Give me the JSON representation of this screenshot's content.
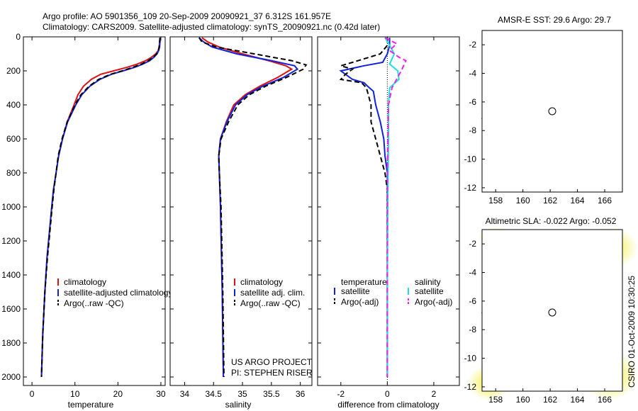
{
  "title_lines": [
    "Argo profile: AO 5901356_109 20-Sep-2009 20090921_37 6.312S 161.957E",
    "Climatology: CARS2009. Satellite-adjusted climatology: synTS_20090921.nc (0.42d later)"
  ],
  "side_label": "CSIRO 01-Oct-2009 10:30:25",
  "credit_lines": [
    "US ARGO PROJECT",
    "PI: STEPHEN RISER"
  ],
  "colors": {
    "clim": "#dd1111",
    "sat": "#1122dd",
    "argo": "#000000",
    "sal_sat": "#22dddd",
    "sal_argo": "#ee22ee"
  },
  "chart_data": [
    {
      "type": "line",
      "panel": "temperature",
      "xlabel": "temperature",
      "ylabel": "",
      "xlim": [
        -2,
        31
      ],
      "ylim": [
        2050,
        0
      ],
      "y_reversed": true,
      "xticks": [
        0,
        10,
        20,
        30
      ],
      "yticks": [
        0,
        200,
        400,
        600,
        800,
        1000,
        1200,
        1400,
        1600,
        1800,
        2000
      ],
      "legend_position": "lower-right",
      "series": [
        {
          "name": "climatology",
          "style": "solid",
          "color": "#dd1111",
          "x": [
            29.8,
            29.7,
            29.6,
            29.4,
            28.8,
            27.8,
            26.5,
            24.5,
            22.0,
            19.0,
            16.0,
            13.8,
            12.0,
            10.7,
            9.8,
            8.2,
            7.1,
            6.2,
            5.6,
            5.0,
            4.6,
            3.5,
            3.0,
            2.5,
            2.2
          ],
          "y": [
            5,
            30,
            60,
            80,
            100,
            120,
            140,
            160,
            180,
            200,
            220,
            250,
            290,
            340,
            400,
            500,
            600,
            700,
            800,
            900,
            1000,
            1300,
            1500,
            1750,
            2000
          ]
        },
        {
          "name": "satellite-adjusted climatology",
          "style": "solid",
          "color": "#1122dd",
          "x": [
            29.9,
            29.8,
            29.7,
            29.5,
            29.1,
            28.4,
            27.4,
            25.8,
            23.8,
            21.2,
            18.5,
            15.8,
            13.5,
            11.6,
            10.2,
            8.3,
            7.1,
            6.2,
            5.6,
            5.0,
            4.6,
            3.5,
            3.0,
            2.5,
            2.2
          ],
          "y": [
            5,
            30,
            60,
            80,
            100,
            120,
            140,
            160,
            180,
            200,
            220,
            250,
            290,
            340,
            400,
            500,
            600,
            700,
            800,
            900,
            1000,
            1300,
            1500,
            1750,
            2000
          ]
        },
        {
          "name": "Argo(..raw -QC)",
          "style": "dashed",
          "color": "#000000",
          "x": [
            29.8,
            29.7,
            29.6,
            29.4,
            29.0,
            28.2,
            27.1,
            25.5,
            23.4,
            21.0,
            18.3,
            15.5,
            13.3,
            11.4,
            10.0,
            8.2,
            7.0,
            6.1,
            5.6,
            5.1,
            4.7,
            3.6,
            3.0,
            2.5,
            2.2
          ],
          "y": [
            5,
            30,
            60,
            80,
            100,
            120,
            140,
            160,
            180,
            200,
            220,
            250,
            290,
            340,
            400,
            500,
            600,
            700,
            800,
            900,
            1000,
            1300,
            1500,
            1750,
            2000
          ]
        }
      ]
    },
    {
      "type": "line",
      "panel": "salinity",
      "xlabel": "salinity",
      "ylabel": "",
      "xlim": [
        33.75,
        36.2
      ],
      "ylim": [
        2050,
        0
      ],
      "y_reversed": true,
      "xticks": [
        34,
        34.5,
        35,
        35.5,
        36
      ],
      "legend_position": "lower-right",
      "series": [
        {
          "name": "climatology",
          "style": "solid",
          "color": "#dd1111",
          "x": [
            34.3,
            34.4,
            34.6,
            35.0,
            35.45,
            35.75,
            35.85,
            35.6,
            35.3,
            35.05,
            34.85,
            34.72,
            34.62,
            34.59,
            34.6,
            34.62,
            34.65,
            34.67
          ],
          "y": [
            5,
            30,
            60,
            100,
            140,
            170,
            190,
            240,
            290,
            340,
            400,
            500,
            600,
            700,
            800,
            1000,
            1500,
            2000
          ]
        },
        {
          "name": "satellite adj. clim.",
          "style": "solid",
          "color": "#1122dd",
          "x": [
            34.25,
            34.33,
            34.48,
            34.9,
            35.5,
            35.9,
            35.95,
            35.7,
            35.35,
            35.08,
            34.88,
            34.73,
            34.62,
            34.59,
            34.6,
            34.62,
            34.65,
            34.67
          ],
          "y": [
            5,
            30,
            60,
            100,
            140,
            170,
            190,
            240,
            290,
            340,
            400,
            500,
            600,
            700,
            800,
            1000,
            1500,
            2000
          ]
        },
        {
          "name": "Argo(..raw -QC)",
          "style": "dashed",
          "color": "#000000",
          "x": [
            34.25,
            34.3,
            34.55,
            35.2,
            35.85,
            36.1,
            36.05,
            35.75,
            35.4,
            35.12,
            34.92,
            34.76,
            34.63,
            34.59,
            34.6,
            34.63,
            34.66,
            34.68
          ],
          "y": [
            5,
            30,
            60,
            100,
            140,
            165,
            190,
            240,
            290,
            340,
            400,
            500,
            600,
            700,
            800,
            1000,
            1500,
            2000
          ]
        }
      ]
    },
    {
      "type": "line",
      "panel": "difference",
      "xlabel": "difference from climatology",
      "ylabel": "",
      "xlim": [
        -3,
        3.1
      ],
      "ylim": [
        2050,
        0
      ],
      "y_reversed": true,
      "xticks": [
        -2,
        0,
        2
      ],
      "legend_position": "lower-center",
      "legend_headers": [
        "temperature",
        "salinity"
      ],
      "series": [
        {
          "name": "satellite",
          "group": "temperature",
          "style": "solid",
          "color": "#1122dd",
          "x": [
            0.1,
            0.1,
            0.0,
            -0.2,
            -1.0,
            -2.0,
            -1.8,
            -1.5,
            -1.0,
            -0.85,
            -0.6,
            -0.5,
            -0.3,
            -0.15,
            -0.1,
            0.0,
            0.0,
            0.0
          ],
          "y": [
            5,
            50,
            100,
            150,
            170,
            200,
            220,
            250,
            270,
            290,
            320,
            400,
            500,
            600,
            700,
            800,
            1200,
            2000
          ]
        },
        {
          "name": "Argo(-adj)",
          "group": "temperature",
          "style": "dashed",
          "color": "#000000",
          "x": [
            0.0,
            0.0,
            -0.3,
            -1.5,
            -2.0,
            -1.5,
            -1.8,
            -2.0,
            -1.1,
            -0.9,
            -0.7,
            -0.7,
            -0.5,
            -0.3,
            -0.1,
            0.0,
            0.0,
            0.0
          ],
          "y": [
            5,
            50,
            100,
            150,
            170,
            190,
            220,
            250,
            270,
            300,
            400,
            500,
            600,
            700,
            800,
            900,
            1200,
            2000
          ]
        },
        {
          "name": "satellite",
          "group": "salinity",
          "style": "solid",
          "color": "#22dddd",
          "x": [
            -0.1,
            0.1,
            0.3,
            0.2,
            0.1,
            0.45,
            0.5,
            0.1,
            0.05,
            0.05,
            0.02,
            0.0,
            0.0
          ],
          "y": [
            5,
            50,
            100,
            130,
            160,
            200,
            250,
            300,
            400,
            600,
            1000,
            1500,
            2000
          ]
        },
        {
          "name": "Argo(-adj)",
          "group": "salinity",
          "style": "dashed",
          "color": "#ee22ee",
          "x": [
            -0.1,
            0.4,
            0.1,
            0.5,
            0.8,
            0.6,
            0.4,
            0.2,
            0.05,
            0.0,
            0.0
          ],
          "y": [
            5,
            40,
            80,
            120,
            140,
            200,
            250,
            300,
            400,
            800,
            2000
          ]
        }
      ]
    }
  ],
  "maps": [
    {
      "title": "AMSR-E SST: 29.6 Argo: 29.7",
      "xticks": [
        "158",
        "160",
        "162",
        "164",
        "166"
      ],
      "yticks": [
        "-2",
        "-4",
        "-6",
        "-8",
        "-10",
        "-12"
      ],
      "xlim": [
        157,
        167.3
      ],
      "ylim": [
        -12.3,
        -1
      ],
      "marker": {
        "lon": 161.957,
        "lat": -6.312
      }
    },
    {
      "title": "Altimetric SLA: -0.022 Argo: -0.052",
      "xticks": [
        "158",
        "160",
        "162",
        "164",
        "166"
      ],
      "yticks": [
        "-2",
        "-4",
        "-6",
        "-8",
        "-10",
        "-12"
      ],
      "xlim": [
        157,
        167.3
      ],
      "ylim": [
        -12.3,
        -1
      ],
      "marker": {
        "lon": 161.957,
        "lat": -6.312
      }
    }
  ]
}
